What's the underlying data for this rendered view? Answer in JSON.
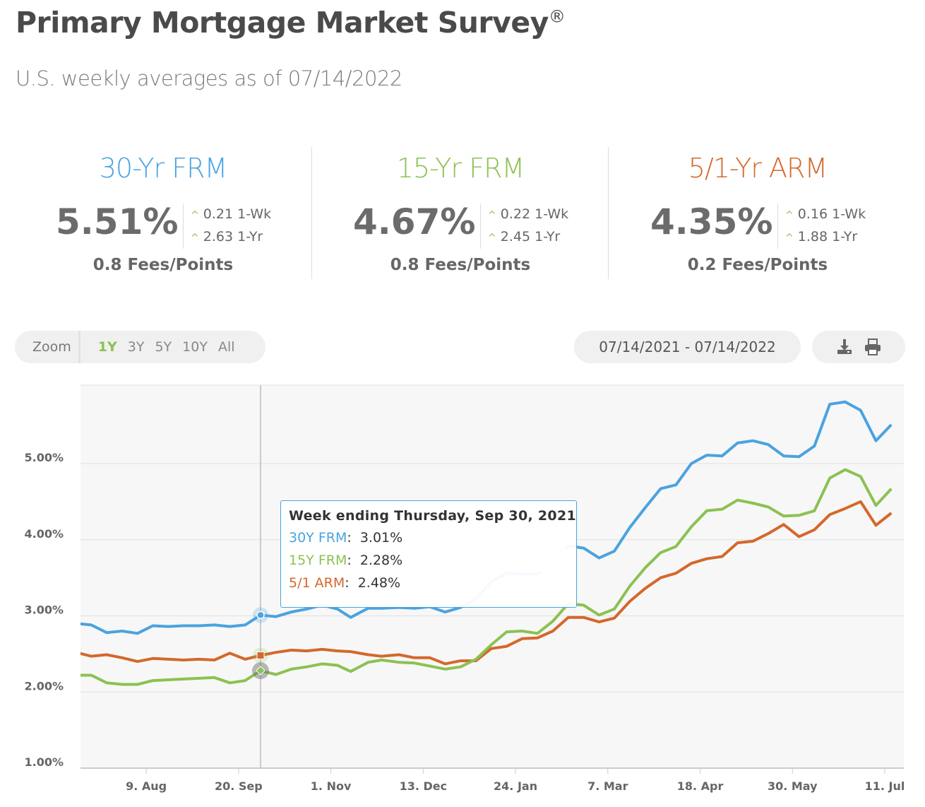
{
  "header": {
    "title": "Primary Mortgage Market Survey",
    "title_mark": "®",
    "subtitle": "U.S. weekly averages as of 07/14/2022"
  },
  "cards": [
    {
      "name": "30-Yr FRM",
      "color": "#4aa3df",
      "rate": "5.51%",
      "wk_change": "0.21",
      "wk_label": "1-Wk",
      "yr_change": "2.63",
      "yr_label": "1-Yr",
      "fees": "0.8 Fees/Points"
    },
    {
      "name": "15-Yr FRM",
      "color": "#8cc152",
      "rate": "4.67%",
      "wk_change": "0.22",
      "wk_label": "1-Wk",
      "yr_change": "2.45",
      "yr_label": "1-Yr",
      "fees": "0.8 Fees/Points"
    },
    {
      "name": "5/1-Yr ARM",
      "color": "#d4682b",
      "rate": "4.35%",
      "wk_change": "0.16",
      "wk_label": "1-Wk",
      "yr_change": "1.88",
      "yr_label": "1-Yr",
      "fees": "0.2 Fees/Points"
    }
  ],
  "toolbar": {
    "zoom_label": "Zoom",
    "zoom_options": [
      "1Y",
      "3Y",
      "5Y",
      "10Y",
      "All"
    ],
    "zoom_selected": "1Y",
    "date_range": "07/14/2021 - 07/14/2022",
    "icons": [
      "download-icon",
      "print-icon"
    ]
  },
  "tooltip": {
    "header": "Week ending Thursday, Sep 30, 2021",
    "rows": [
      {
        "label": "30Y FRM",
        "value": "3.01%"
      },
      {
        "label": "15Y FRM",
        "value": "2.28%"
      },
      {
        "label": "5/1 ARM",
        "value": "2.48%"
      }
    ],
    "highlighted": "15Y FRM"
  },
  "chart_data": {
    "type": "line",
    "ylim": [
      1,
      5.9
    ],
    "y_ticks": [
      "1.00%",
      "2.00%",
      "3.00%",
      "4.00%",
      "5.00%"
    ],
    "y_tick_values": [
      1,
      2,
      3,
      4,
      5
    ],
    "x_ticks": [
      "9. Aug",
      "20. Sep",
      "1. Nov",
      "13. Dec",
      "24. Jan",
      "7. Mar",
      "18. Apr",
      "30. May",
      "11. Jul"
    ],
    "x_tick_dates": [
      "2021-08-09",
      "2021-09-20",
      "2021-11-01",
      "2021-12-13",
      "2022-01-24",
      "2022-03-07",
      "2022-04-18",
      "2022-05-30",
      "2022-07-11"
    ],
    "grid": true,
    "crosshair_date": "2021-09-30",
    "dates": [
      "2021-07-08",
      "2021-07-15",
      "2021-07-22",
      "2021-07-29",
      "2021-08-05",
      "2021-08-12",
      "2021-08-19",
      "2021-08-26",
      "2021-09-02",
      "2021-09-09",
      "2021-09-16",
      "2021-09-23",
      "2021-09-30",
      "2021-10-07",
      "2021-10-14",
      "2021-10-21",
      "2021-10-28",
      "2021-11-04",
      "2021-11-10",
      "2021-11-18",
      "2021-11-24",
      "2021-12-02",
      "2021-12-09",
      "2021-12-16",
      "2021-12-23",
      "2021-12-30",
      "2022-01-06",
      "2022-01-13",
      "2022-01-20",
      "2022-01-27",
      "2022-02-03",
      "2022-02-10",
      "2022-02-17",
      "2022-02-24",
      "2022-03-03",
      "2022-03-10",
      "2022-03-17",
      "2022-03-24",
      "2022-03-31",
      "2022-04-07",
      "2022-04-14",
      "2022-04-21",
      "2022-04-28",
      "2022-05-05",
      "2022-05-12",
      "2022-05-19",
      "2022-05-26",
      "2022-06-02",
      "2022-06-09",
      "2022-06-16",
      "2022-06-23",
      "2022-06-30",
      "2022-07-07",
      "2022-07-14"
    ],
    "series": [
      {
        "name": "30Y FRM",
        "color": "#4aa3df",
        "values": [
          2.9,
          2.88,
          2.78,
          2.8,
          2.77,
          2.87,
          2.86,
          2.87,
          2.87,
          2.88,
          2.86,
          2.88,
          3.01,
          2.99,
          3.05,
          3.09,
          3.14,
          3.09,
          2.98,
          3.1,
          3.1,
          3.11,
          3.1,
          3.12,
          3.05,
          3.11,
          3.22,
          3.45,
          3.56,
          3.55,
          3.55,
          3.69,
          3.92,
          3.89,
          3.76,
          3.85,
          4.16,
          4.42,
          4.67,
          4.72,
          5.0,
          5.11,
          5.1,
          5.27,
          5.3,
          5.25,
          5.1,
          5.09,
          5.23,
          5.78,
          5.81,
          5.7,
          5.3,
          5.51
        ]
      },
      {
        "name": "15Y FRM",
        "color": "#8cc152",
        "values": [
          2.22,
          2.22,
          2.12,
          2.1,
          2.1,
          2.15,
          2.16,
          2.17,
          2.18,
          2.19,
          2.12,
          2.15,
          2.28,
          2.23,
          2.3,
          2.33,
          2.37,
          2.35,
          2.27,
          2.39,
          2.42,
          2.39,
          2.38,
          2.34,
          2.3,
          2.33,
          2.43,
          2.62,
          2.79,
          2.8,
          2.77,
          2.93,
          3.16,
          3.14,
          3.01,
          3.09,
          3.39,
          3.63,
          3.83,
          3.91,
          4.17,
          4.38,
          4.4,
          4.52,
          4.48,
          4.43,
          4.31,
          4.32,
          4.38,
          4.81,
          4.92,
          4.83,
          4.45,
          4.67
        ]
      },
      {
        "name": "5/1 ARM",
        "color": "#d4682b",
        "values": [
          2.52,
          2.47,
          2.49,
          2.45,
          2.4,
          2.44,
          2.43,
          2.42,
          2.43,
          2.42,
          2.51,
          2.43,
          2.48,
          2.52,
          2.55,
          2.54,
          2.56,
          2.54,
          2.53,
          2.49,
          2.47,
          2.49,
          2.45,
          2.45,
          2.37,
          2.41,
          2.41,
          2.57,
          2.6,
          2.7,
          2.71,
          2.8,
          2.98,
          2.98,
          2.92,
          2.97,
          3.19,
          3.36,
          3.5,
          3.56,
          3.69,
          3.75,
          3.78,
          3.96,
          3.98,
          4.08,
          4.2,
          4.04,
          4.13,
          4.33,
          4.41,
          4.5,
          4.19,
          4.35
        ]
      }
    ]
  }
}
